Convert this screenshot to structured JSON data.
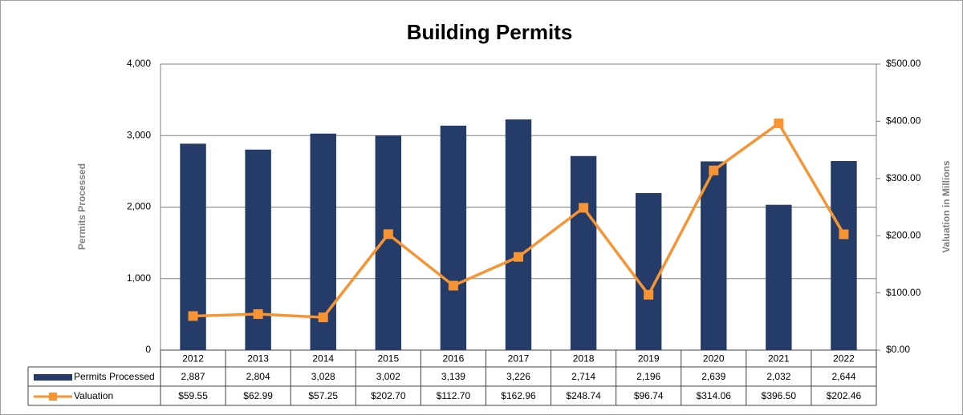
{
  "chart_data": {
    "type": "bar-line",
    "title": "Building Permits",
    "y_label": "Permits  Processed",
    "y2_label": "Valuation in Millions",
    "categories": [
      "2012",
      "2013",
      "2014",
      "2015",
      "2016",
      "2017",
      "2018",
      "2019",
      "2020",
      "2021",
      "2022"
    ],
    "series": [
      {
        "name": "Permits Processed",
        "type": "bar",
        "color": "#253c68",
        "values": [
          2887,
          2804,
          3028,
          3002,
          3139,
          3226,
          2714,
          2196,
          2639,
          2032,
          2644
        ],
        "value_labels": [
          "2,887",
          "2,804",
          "3,028",
          "3,002",
          "3,139",
          "3,226",
          "2,714",
          "2,196",
          "2,639",
          "2,032",
          "2,644"
        ]
      },
      {
        "name": "Valuation",
        "type": "line",
        "axis": "y2",
        "color": "#f79433",
        "values": [
          59.55,
          62.99,
          57.25,
          202.7,
          112.7,
          162.96,
          248.74,
          96.74,
          314.06,
          396.5,
          202.46
        ],
        "value_labels": [
          "$59.55",
          "$62.99",
          "$57.25",
          "$202.70",
          "$112.70",
          "$162.96",
          "$248.74",
          "$96.74",
          "$314.06",
          "$396.50",
          "$202.46"
        ]
      }
    ],
    "ylim": [
      0,
      4000
    ],
    "yticks": [
      0,
      {
        "value": 1000,
        "label": "1,000"
      },
      {
        "value": 2000,
        "label": "2,000"
      },
      {
        "value": 3000,
        "label": "3,000"
      },
      {
        "value": 4000,
        "label": "4,000"
      }
    ],
    "y2lim": [
      0,
      500
    ],
    "y2ticks": [
      {
        "value": 0,
        "label": "$0.00"
      },
      {
        "value": 100,
        "label": "$100.00"
      },
      {
        "value": 200,
        "label": "$200.00"
      },
      {
        "value": 300,
        "label": "$300.00"
      },
      {
        "value": 400,
        "label": "$400.00"
      },
      {
        "value": 500,
        "label": "$500.00"
      }
    ],
    "grid": true
  }
}
